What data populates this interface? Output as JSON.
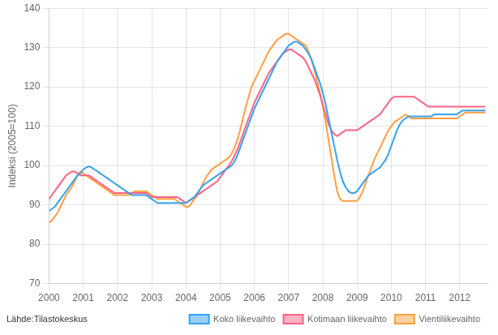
{
  "chart_data": {
    "type": "line",
    "ylabel": "Indeksi (2005=100)",
    "annotations": [
      "Lähde:Tilastokeskus"
    ],
    "xlim": [
      2000.0,
      2012.833
    ],
    "xticks": [
      2000,
      2001,
      2002,
      2003,
      2004,
      2005,
      2006,
      2007,
      2008,
      2009,
      2010,
      2011,
      2012
    ],
    "ylim": [
      70,
      140
    ],
    "yticks": [
      70,
      80,
      90,
      100,
      110,
      120,
      130,
      140
    ],
    "grid": true,
    "legend": "lower right",
    "x": [
      2000,
      2000.083333,
      2000.166667,
      2000.25,
      2000.333333,
      2000.416667,
      2000.5,
      2000.583333,
      2000.666667,
      2000.75,
      2000.833333,
      2000.916667,
      2001,
      2001.083333,
      2001.166667,
      2001.25,
      2001.333333,
      2001.416667,
      2001.5,
      2001.583333,
      2001.666667,
      2001.75,
      2001.833333,
      2001.916667,
      2002,
      2002.083333,
      2002.166667,
      2002.25,
      2002.333333,
      2002.416667,
      2002.5,
      2002.583333,
      2002.666667,
      2002.75,
      2002.833333,
      2002.916667,
      2003,
      2003.083333,
      2003.166667,
      2003.25,
      2003.333333,
      2003.416667,
      2003.5,
      2003.583333,
      2003.666667,
      2003.75,
      2003.833333,
      2003.916667,
      2004,
      2004.083333,
      2004.166667,
      2004.25,
      2004.333333,
      2004.416667,
      2004.5,
      2004.583333,
      2004.666667,
      2004.75,
      2004.833333,
      2004.916667,
      2005,
      2005.083333,
      2005.166667,
      2005.25,
      2005.333333,
      2005.416667,
      2005.5,
      2005.583333,
      2005.666667,
      2005.75,
      2005.833333,
      2005.916667,
      2006,
      2006.083333,
      2006.166667,
      2006.25,
      2006.333333,
      2006.416667,
      2006.5,
      2006.583333,
      2006.666667,
      2006.75,
      2006.833333,
      2006.916667,
      2007,
      2007.083333,
      2007.166667,
      2007.25,
      2007.333333,
      2007.416667,
      2007.5,
      2007.583333,
      2007.666667,
      2007.75,
      2007.833333,
      2007.916667,
      2008,
      2008.083333,
      2008.166667,
      2008.25,
      2008.333333,
      2008.416667,
      2008.5,
      2008.583333,
      2008.666667,
      2008.75,
      2008.833333,
      2008.916667,
      2009,
      2009.083333,
      2009.166667,
      2009.25,
      2009.333333,
      2009.416667,
      2009.5,
      2009.583333,
      2009.666667,
      2009.75,
      2009.833333,
      2009.916667,
      2010,
      2010.083333,
      2010.166667,
      2010.25,
      2010.333333,
      2010.416667,
      2010.5,
      2010.583333,
      2010.666667,
      2010.75,
      2010.833333,
      2010.916667,
      2011,
      2011.083333,
      2011.166667,
      2011.25,
      2011.333333,
      2011.416667,
      2011.5,
      2011.583333,
      2011.666667,
      2011.75,
      2011.833333,
      2011.916667,
      2012,
      2012.083333,
      2012.166667,
      2012.25,
      2012.333333,
      2012.416667,
      2012.5,
      2012.583333,
      2012.666667,
      2012.75
    ],
    "series": [
      {
        "name": "Koko liikevaihto",
        "values": [
          88.5,
          89.0,
          89.5,
          90.5,
          91.5,
          92.5,
          93.5,
          94.5,
          95.5,
          96.5,
          97.5,
          98.0,
          99.0,
          99.5,
          99.8,
          99.5,
          99.0,
          98.5,
          98.0,
          97.5,
          97.0,
          96.5,
          96.0,
          95.5,
          95.0,
          94.5,
          94.0,
          93.5,
          93.0,
          92.5,
          92.5,
          92.5,
          92.5,
          92.5,
          92.5,
          92.0,
          91.5,
          91.0,
          90.5,
          90.5,
          90.5,
          90.5,
          90.5,
          90.5,
          90.5,
          90.5,
          90.5,
          90.5,
          90.5,
          91.0,
          91.5,
          92.0,
          93.0,
          94.0,
          95.0,
          95.5,
          96.0,
          96.5,
          97.0,
          97.5,
          98.0,
          98.5,
          99.0,
          99.5,
          100.0,
          101.0,
          102.5,
          104.5,
          106.5,
          108.5,
          110.5,
          112.5,
          114.5,
          116.0,
          117.5,
          119.0,
          120.5,
          122.0,
          123.5,
          125.0,
          126.5,
          127.5,
          128.5,
          129.5,
          130.5,
          131.0,
          131.5,
          131.5,
          131.0,
          130.5,
          129.5,
          128.5,
          127.0,
          125.0,
          123.0,
          121.0,
          118.5,
          115.5,
          112.0,
          108.5,
          105.0,
          101.5,
          98.5,
          96.0,
          94.5,
          93.5,
          93.0,
          93.0,
          93.5,
          94.5,
          95.5,
          96.5,
          97.5,
          98.0,
          98.5,
          99.0,
          99.5,
          100.5,
          101.5,
          103.0,
          105.0,
          107.0,
          109.0,
          110.5,
          111.5,
          112.0,
          112.5,
          112.5,
          112.5,
          112.5,
          112.5,
          112.5,
          112.5,
          112.5,
          112.5,
          113.0,
          113.0,
          113.0,
          113.0,
          113.0,
          113.0,
          113.0,
          113.0,
          113.0,
          113.5,
          114.0,
          114.0,
          114.0,
          114.0,
          114.0,
          114.0,
          114.0,
          114.0,
          114.0
        ]
      },
      {
        "name": "Kotimaan liikevaihto",
        "values": [
          91.5,
          92.5,
          93.5,
          94.5,
          95.5,
          96.5,
          97.5,
          98.0,
          98.5,
          98.5,
          98.0,
          97.5,
          97.5,
          97.5,
          97.5,
          97.0,
          96.5,
          96.0,
          95.5,
          95.0,
          94.5,
          94.0,
          93.5,
          93.0,
          93.0,
          93.0,
          93.0,
          93.0,
          93.0,
          93.0,
          93.0,
          93.0,
          93.0,
          93.0,
          93.0,
          92.5,
          92.0,
          92.0,
          92.0,
          92.0,
          92.0,
          92.0,
          92.0,
          92.0,
          92.0,
          92.0,
          91.5,
          91.0,
          90.5,
          91.0,
          91.5,
          92.0,
          92.5,
          93.0,
          93.5,
          94.0,
          94.5,
          95.0,
          95.5,
          96.0,
          97.0,
          98.0,
          99.0,
          100.0,
          101.0,
          102.5,
          104.0,
          106.0,
          108.0,
          110.0,
          112.0,
          114.0,
          116.0,
          117.5,
          119.0,
          120.5,
          122.0,
          123.5,
          124.5,
          125.5,
          126.5,
          127.5,
          128.5,
          129.0,
          129.5,
          129.5,
          129.0,
          128.5,
          128.0,
          127.5,
          126.5,
          125.0,
          123.5,
          122.0,
          120.0,
          118.0,
          115.5,
          113.0,
          110.5,
          109.0,
          108.0,
          107.5,
          108.0,
          108.5,
          109.0,
          109.0,
          109.0,
          109.0,
          109.0,
          109.5,
          110.0,
          110.5,
          111.0,
          111.5,
          112.0,
          112.5,
          113.0,
          114.0,
          115.0,
          116.0,
          117.0,
          117.5,
          117.5,
          117.5,
          117.5,
          117.5,
          117.5,
          117.5,
          117.5,
          117.0,
          116.5,
          116.0,
          115.5,
          115.0,
          115.0,
          115.0,
          115.0,
          115.0,
          115.0,
          115.0,
          115.0,
          115.0,
          115.0,
          115.0,
          115.0,
          115.0,
          115.0,
          115.0,
          115.0,
          115.0,
          115.0,
          115.0,
          115.0,
          115.0
        ]
      },
      {
        "name": "Vientiliikevaihto",
        "values": [
          85.5,
          86.0,
          87.0,
          88.0,
          89.5,
          91.0,
          92.5,
          93.5,
          94.5,
          96.0,
          97.5,
          98.5,
          98.0,
          97.5,
          97.0,
          96.5,
          96.0,
          95.5,
          95.0,
          94.5,
          94.0,
          93.5,
          93.0,
          92.5,
          92.5,
          92.5,
          92.5,
          92.5,
          92.5,
          93.0,
          93.5,
          93.5,
          93.5,
          93.5,
          93.5,
          93.0,
          92.5,
          92.0,
          91.5,
          91.5,
          91.5,
          91.5,
          91.5,
          91.5,
          91.5,
          91.0,
          90.5,
          90.0,
          89.5,
          89.5,
          90.5,
          91.5,
          92.5,
          94.0,
          95.5,
          97.0,
          98.0,
          99.0,
          99.5,
          100.0,
          100.5,
          101.0,
          101.5,
          102.0,
          103.0,
          104.5,
          106.5,
          109.0,
          112.0,
          115.0,
          117.5,
          120.0,
          121.5,
          123.0,
          124.5,
          126.0,
          127.5,
          129.0,
          130.0,
          131.0,
          132.0,
          132.5,
          133.0,
          133.5,
          133.5,
          133.0,
          132.5,
          132.0,
          131.5,
          131.0,
          130.5,
          129.0,
          127.0,
          124.5,
          121.5,
          118.5,
          115.0,
          111.0,
          106.5,
          102.0,
          97.5,
          93.5,
          91.5,
          91.0,
          91.0,
          91.0,
          91.0,
          91.0,
          91.0,
          92.0,
          93.5,
          95.5,
          97.5,
          99.5,
          101.5,
          103.0,
          104.5,
          106.0,
          107.5,
          109.0,
          110.0,
          111.0,
          111.5,
          112.0,
          112.5,
          113.0,
          112.5,
          112.0,
          112.0,
          112.0,
          112.0,
          112.0,
          112.0,
          112.0,
          112.0,
          112.0,
          112.0,
          112.0,
          112.0,
          112.0,
          112.0,
          112.0,
          112.0,
          112.0,
          112.5,
          113.0,
          113.5,
          113.5,
          113.5,
          113.5,
          113.5,
          113.5,
          113.5,
          113.5
        ]
      }
    ]
  }
}
